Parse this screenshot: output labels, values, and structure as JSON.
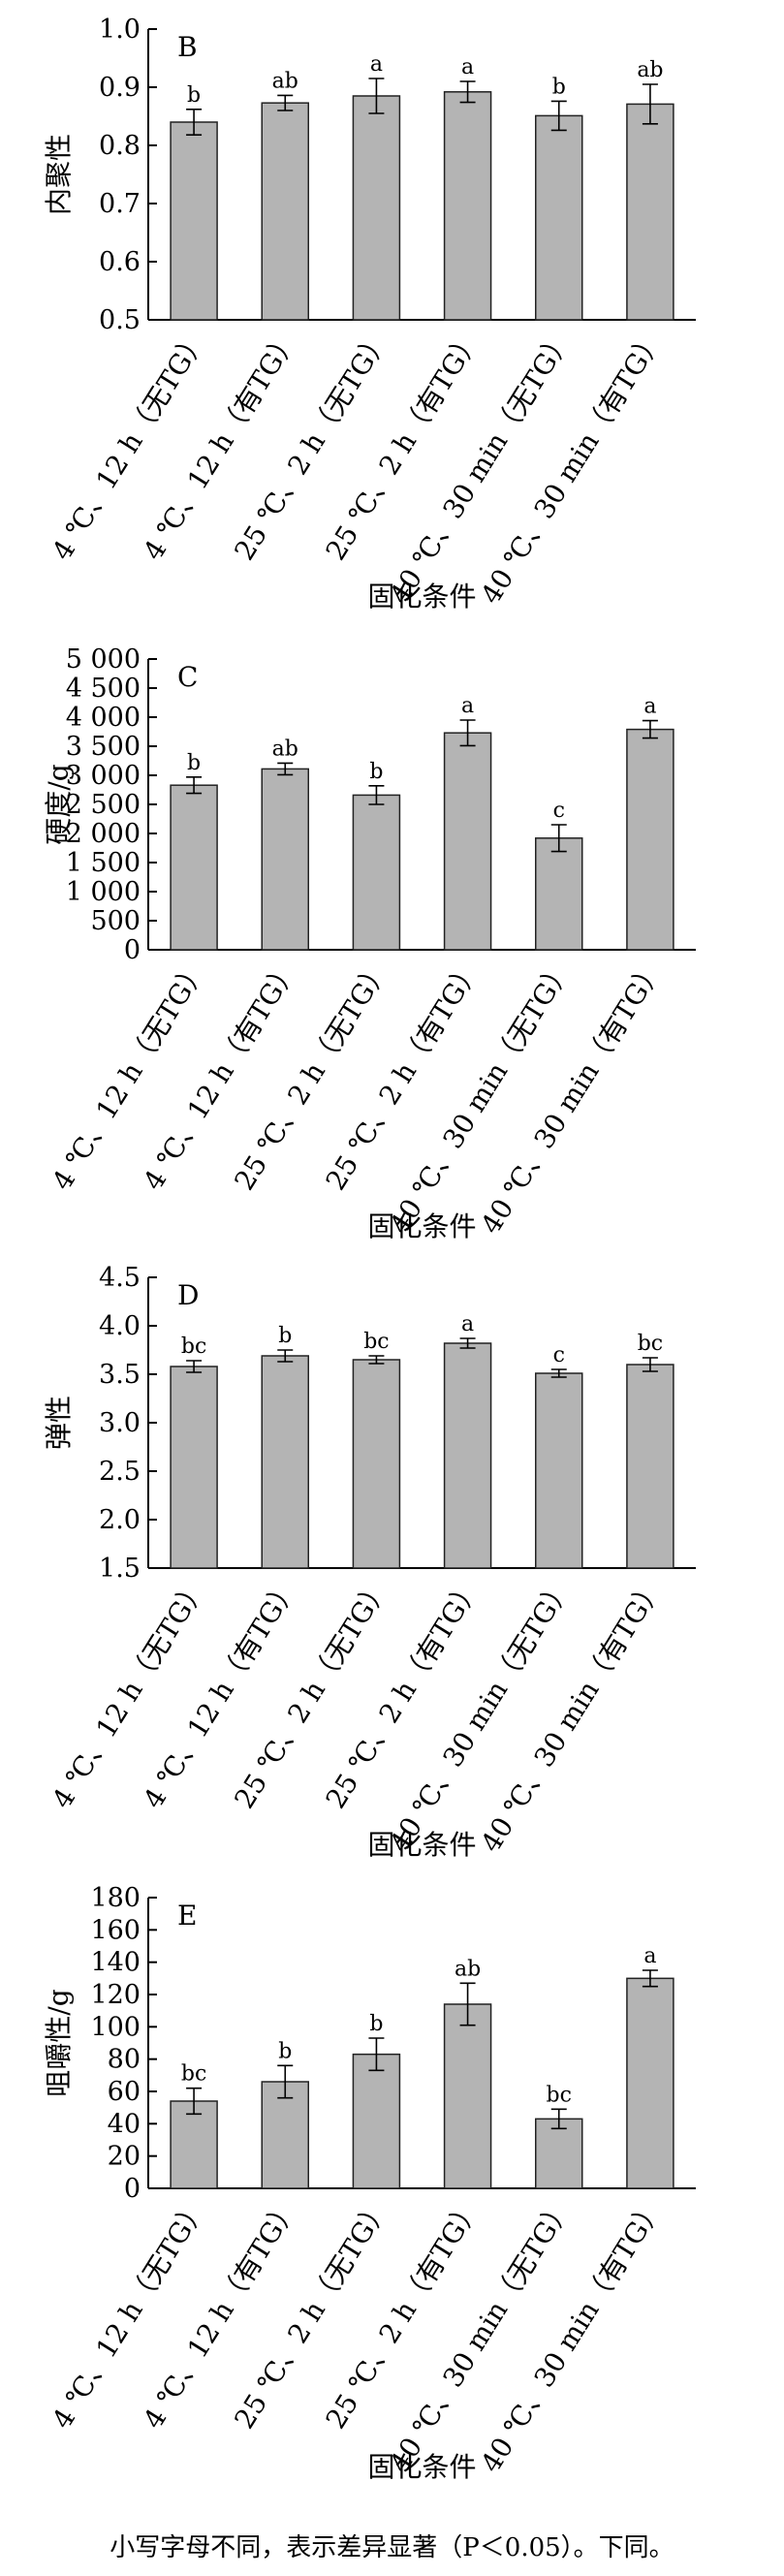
{
  "chart_data": [
    {
      "type": "bar",
      "panel": "B",
      "ylabel": "内聚性",
      "xlabel": "固化条件",
      "ylim": [
        0.5,
        1.0
      ],
      "yticks": [
        "0.5",
        "0.6",
        "0.7",
        "0.8",
        "0.9",
        "1.0"
      ],
      "categories": [
        "4 ℃、12 h（无TG）",
        "4 ℃、12 h（有TG）",
        "25 ℃、2 h（无TG）",
        "25 ℃、2 h（有TG）",
        "40 ℃、30 min（无TG）",
        "40 ℃、30 min（有TG）"
      ],
      "values": [
        0.84,
        0.873,
        0.885,
        0.892,
        0.851,
        0.871
      ],
      "errors": [
        0.022,
        0.013,
        0.03,
        0.018,
        0.025,
        0.034
      ],
      "letters": [
        "b",
        "ab",
        "a",
        "a",
        "b",
        "ab"
      ]
    },
    {
      "type": "bar",
      "panel": "C",
      "ylabel": "硬度/g",
      "xlabel": "固化条件",
      "ylim": [
        0,
        5000
      ],
      "yticks": [
        "0",
        "500",
        "1 000",
        "1 500",
        "2 000",
        "2 500",
        "3 000",
        "3 500",
        "4 000",
        "4 500",
        "5 000"
      ],
      "categories": [
        "4 ℃、12 h（无TG）",
        "4 ℃、12 h（有TG）",
        "25 ℃、2 h（无TG）",
        "25 ℃、2 h（有TG）",
        "40 ℃、30 min（无TG）",
        "40 ℃、30 min（有TG）"
      ],
      "values": [
        2830,
        3110,
        2660,
        3730,
        1920,
        3790
      ],
      "errors": [
        140,
        100,
        160,
        220,
        230,
        150
      ],
      "letters": [
        "b",
        "ab",
        "b",
        "a",
        "c",
        "a"
      ]
    },
    {
      "type": "bar",
      "panel": "D",
      "ylabel": "弹性",
      "xlabel": "固化条件",
      "ylim": [
        1.5,
        4.5
      ],
      "yticks": [
        "1.5",
        "2.0",
        "2.5",
        "3.0",
        "3.5",
        "4.0",
        "4.5"
      ],
      "categories": [
        "4 ℃、12 h（无TG）",
        "4 ℃、12 h（有TG）",
        "25 ℃、2 h（无TG）",
        "25 ℃、2 h（有TG）",
        "40 ℃、30 min（无TG）",
        "40 ℃、30 min（有TG）"
      ],
      "values": [
        3.58,
        3.69,
        3.65,
        3.82,
        3.51,
        3.6
      ],
      "errors": [
        0.06,
        0.06,
        0.04,
        0.05,
        0.04,
        0.07
      ],
      "letters": [
        "bc",
        "b",
        "bc",
        "a",
        "c",
        "bc"
      ]
    },
    {
      "type": "bar",
      "panel": "E",
      "ylabel": "咀嚼性/g",
      "xlabel": "固化条件",
      "ylim": [
        0,
        180
      ],
      "yticks": [
        "0",
        "20",
        "40",
        "60",
        "80",
        "100",
        "120",
        "140",
        "160",
        "180"
      ],
      "categories": [
        "4 ℃、12 h（无TG）",
        "4 ℃、12 h（有TG）",
        "25 ℃、2 h（无TG）",
        "25 ℃、2 h（有TG）",
        "40 ℃、30 min（无TG）",
        "40 ℃、30 min（有TG）"
      ],
      "values": [
        54,
        66,
        83,
        114,
        43,
        130
      ],
      "errors": [
        8,
        10,
        10,
        13,
        6,
        5
      ],
      "letters": [
        "bc",
        "b",
        "b",
        "ab",
        "bc",
        "a"
      ]
    }
  ],
  "caption": "小写字母不同，表示差异显著（P＜0.05）。下同。",
  "colors": {
    "bar_fill": "#b4b4b4",
    "bar_stroke": "#222222",
    "axis": "#000000"
  }
}
